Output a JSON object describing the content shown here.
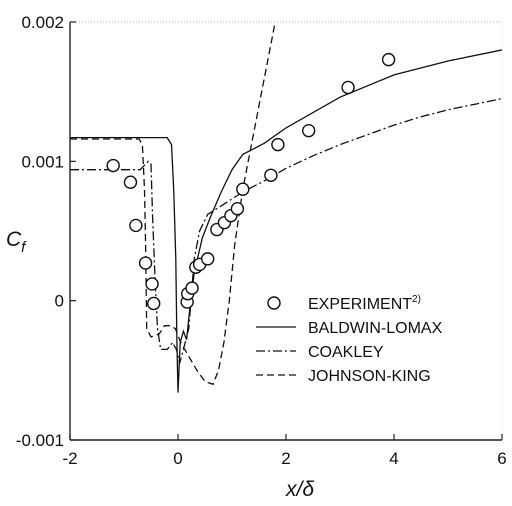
{
  "chart_data": {
    "type": "line",
    "xlabel": "x/δ",
    "ylabel_main": "C",
    "ylabel_sub": "f",
    "xlim": [
      -2,
      6
    ],
    "ylim": [
      -0.001,
      0.002
    ],
    "x_ticks": [
      -2,
      0,
      2,
      4,
      6
    ],
    "x_tick_labels": [
      "-2",
      "0",
      "2",
      "4",
      "6"
    ],
    "y_ticks": [
      -0.001,
      0,
      0.001,
      0.002
    ],
    "y_tick_labels": [
      "-0.001",
      "0",
      "0.001",
      "0.002"
    ],
    "grid": false,
    "legend_position": "lower-right",
    "series": [
      {
        "name": "EXPERIMENT",
        "name_superscript": "2)",
        "kind": "markers",
        "marker": "open-circle",
        "points": [
          [
            -1.2,
            0.00097
          ],
          [
            -0.88,
            0.00085
          ],
          [
            -0.78,
            0.00054
          ],
          [
            -0.6,
            0.00027
          ],
          [
            -0.48,
            0.00012
          ],
          [
            -0.45,
            -2e-05
          ],
          [
            0.17,
            -1e-05
          ],
          [
            0.18,
            5e-05
          ],
          [
            0.26,
            9e-05
          ],
          [
            0.33,
            0.00024
          ],
          [
            0.4,
            0.00026
          ],
          [
            0.55,
            0.0003
          ],
          [
            0.72,
            0.00051
          ],
          [
            0.86,
            0.00056
          ],
          [
            0.98,
            0.00061
          ],
          [
            1.1,
            0.00066
          ],
          [
            1.2,
            0.0008
          ],
          [
            1.72,
            0.0009
          ],
          [
            1.85,
            0.00112
          ],
          [
            2.42,
            0.00122
          ],
          [
            3.15,
            0.00153
          ],
          [
            3.9,
            0.00173
          ]
        ]
      },
      {
        "name": "BALDWIN-LOMAX",
        "kind": "line",
        "dash": "solid",
        "points": [
          [
            -2,
            0.00117
          ],
          [
            -0.2,
            0.00117
          ],
          [
            -0.12,
            0.00112
          ],
          [
            -0.08,
            0.0008
          ],
          [
            -0.04,
            0.0003
          ],
          [
            -0.02,
            -0.0003
          ],
          [
            0,
            -0.00066
          ],
          [
            0.04,
            -0.0003
          ],
          [
            0.1,
            -0.00022
          ],
          [
            0.16,
            -0.00028
          ],
          [
            0.22,
            -5e-05
          ],
          [
            0.3,
            0.0002
          ],
          [
            0.45,
            0.00045
          ],
          [
            0.6,
            0.0006
          ],
          [
            0.8,
            0.00078
          ],
          [
            1.0,
            0.00094
          ],
          [
            1.2,
            0.00105
          ],
          [
            1.6,
            0.00113
          ],
          [
            2,
            0.00124
          ],
          [
            2.5,
            0.00135
          ],
          [
            3,
            0.00146
          ],
          [
            4,
            0.00162
          ],
          [
            5,
            0.00172
          ],
          [
            6,
            0.0018
          ]
        ]
      },
      {
        "name": "COAKLEY",
        "kind": "line",
        "dash": "dash-dot",
        "points": [
          [
            -2,
            0.00094
          ],
          [
            -0.7,
            0.00094
          ],
          [
            -0.55,
            0.001
          ],
          [
            -0.5,
            0.00098
          ],
          [
            -0.47,
            0.0006
          ],
          [
            -0.43,
            0.0002
          ],
          [
            -0.38,
            -0.0002
          ],
          [
            -0.32,
            -0.00035
          ],
          [
            -0.2,
            -0.00035
          ],
          [
            -0.1,
            -0.0003
          ],
          [
            -0.03,
            -0.00035
          ],
          [
            0.03,
            -0.00045
          ],
          [
            0.1,
            -0.00035
          ],
          [
            0.2,
            -0.0002
          ],
          [
            0.3,
            0.0003
          ],
          [
            0.4,
            0.0005
          ],
          [
            0.55,
            0.00062
          ],
          [
            0.8,
            0.00068
          ],
          [
            1.2,
            0.00078
          ],
          [
            1.6,
            0.00086
          ],
          [
            2,
            0.00095
          ],
          [
            2.5,
            0.00104
          ],
          [
            3,
            0.00112
          ],
          [
            3.5,
            0.00119
          ],
          [
            4,
            0.00126
          ],
          [
            4.5,
            0.00132
          ],
          [
            5,
            0.00137
          ],
          [
            5.5,
            0.00141
          ],
          [
            6,
            0.00145
          ]
        ]
      },
      {
        "name": "JOHNSON-KING",
        "kind": "line",
        "dash": "dashed",
        "points": [
          [
            -2,
            0.00116
          ],
          [
            -0.72,
            0.00116
          ],
          [
            -0.66,
            0.00112
          ],
          [
            -0.62,
            0.0008
          ],
          [
            -0.6,
            0.0004
          ],
          [
            -0.58,
            -0.0002
          ],
          [
            -0.5,
            -0.00026
          ],
          [
            -0.35,
            -0.00024
          ],
          [
            -0.25,
            -0.00018
          ],
          [
            -0.15,
            -0.00018
          ],
          [
            -0.05,
            -0.0002
          ],
          [
            0.05,
            -0.0003
          ],
          [
            0.2,
            -0.0004
          ],
          [
            0.35,
            -0.0005
          ],
          [
            0.5,
            -0.00058
          ],
          [
            0.65,
            -0.0006
          ],
          [
            0.75,
            -0.0005
          ],
          [
            0.85,
            -0.0003
          ],
          [
            0.95,
            0
          ],
          [
            1.05,
            0.0004
          ],
          [
            1.2,
            0.0008
          ],
          [
            1.4,
            0.0012
          ],
          [
            1.6,
            0.0016
          ],
          [
            1.8,
            0.002
          ]
        ]
      }
    ]
  }
}
